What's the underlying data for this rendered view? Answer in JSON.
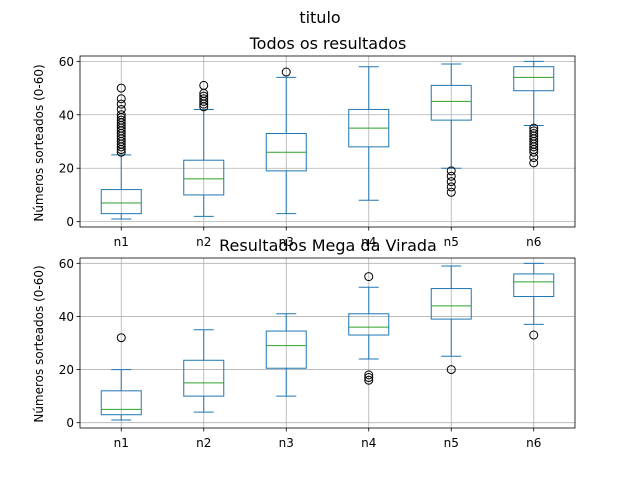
{
  "figure": {
    "suptitle": "titulo"
  },
  "colors": {
    "box": "#1f77b4",
    "median": "#2ca02c",
    "grid": "#b0b0b0",
    "flier": "#000000"
  },
  "chart_data": [
    {
      "type": "box",
      "title": "Todos os resultados",
      "xlabel": "",
      "ylabel": "Números sorteados (0-60)",
      "categories": [
        "n1",
        "n2",
        "n3",
        "n4",
        "n5",
        "n6"
      ],
      "ylim": [
        -2,
        62
      ],
      "yticks": [
        0,
        20,
        40,
        60
      ],
      "grid": true,
      "boxes": [
        {
          "whisker_low": 1,
          "q1": 3,
          "median": 7,
          "q3": 12,
          "whisker_high": 25,
          "outliers": [
            26,
            27,
            28,
            29,
            30,
            31,
            32,
            33,
            34,
            35,
            36,
            37,
            38,
            39,
            40,
            42,
            44,
            46,
            50
          ]
        },
        {
          "whisker_low": 2,
          "q1": 10,
          "median": 16,
          "q3": 23,
          "whisker_high": 42,
          "outliers": [
            43,
            44,
            45,
            46,
            47,
            48,
            51
          ]
        },
        {
          "whisker_low": 3,
          "q1": 19,
          "median": 26,
          "q3": 33,
          "whisker_high": 54,
          "outliers": [
            56
          ]
        },
        {
          "whisker_low": 8,
          "q1": 28,
          "median": 35,
          "q3": 42,
          "whisker_high": 58,
          "outliers": []
        },
        {
          "whisker_low": 20,
          "q1": 38,
          "median": 45,
          "q3": 51,
          "whisker_high": 59,
          "outliers": [
            11,
            13,
            15,
            17,
            19
          ]
        },
        {
          "whisker_low": 36,
          "q1": 49,
          "median": 54,
          "q3": 58,
          "whisker_high": 60,
          "outliers": [
            22,
            24,
            26,
            27,
            28,
            29,
            30,
            31,
            32,
            33,
            34,
            35
          ]
        }
      ]
    },
    {
      "type": "box",
      "title": "Resultados Mega da Virada",
      "xlabel": "",
      "ylabel": "Números sorteados (0-60)",
      "categories": [
        "n1",
        "n2",
        "n3",
        "n4",
        "n5",
        "n6"
      ],
      "ylim": [
        -2,
        62
      ],
      "yticks": [
        0,
        20,
        40,
        60
      ],
      "grid": true,
      "boxes": [
        {
          "whisker_low": 1,
          "q1": 3,
          "median": 5,
          "q3": 12,
          "whisker_high": 20,
          "outliers": [
            32
          ]
        },
        {
          "whisker_low": 4,
          "q1": 10,
          "median": 15,
          "q3": 23.5,
          "whisker_high": 35,
          "outliers": []
        },
        {
          "whisker_low": 10,
          "q1": 20.5,
          "median": 29,
          "q3": 34.5,
          "whisker_high": 41,
          "outliers": []
        },
        {
          "whisker_low": 24,
          "q1": 33,
          "median": 36,
          "q3": 41,
          "whisker_high": 51,
          "outliers": [
            16,
            17,
            18,
            55
          ]
        },
        {
          "whisker_low": 25,
          "q1": 39,
          "median": 44,
          "q3": 50.5,
          "whisker_high": 59,
          "outliers": [
            20
          ]
        },
        {
          "whisker_low": 37,
          "q1": 47.5,
          "median": 53,
          "q3": 56,
          "whisker_high": 60,
          "outliers": [
            33
          ]
        }
      ]
    }
  ]
}
